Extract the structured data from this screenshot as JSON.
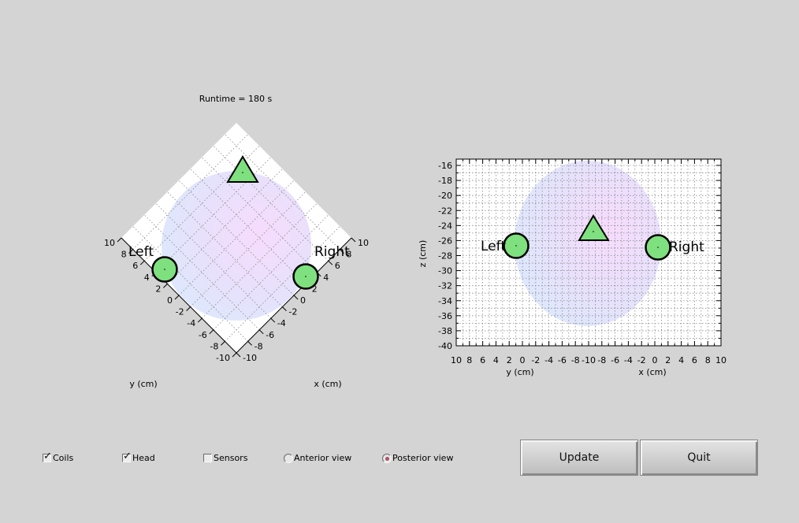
{
  "window": {
    "runtime_label": "Runtime = 180 s"
  },
  "left_plot": {
    "view": "top view, rotated 45 degrees",
    "x_axis_label": "x (cm)",
    "y_axis_label": "y (cm)",
    "x_ticks": [
      "-10",
      "-8",
      "-6",
      "-4",
      "-2",
      "0",
      "2",
      "4",
      "6",
      "8",
      "10"
    ],
    "y_ticks": [
      "10",
      "8",
      "6",
      "4",
      "2",
      "0",
      "-2",
      "-4",
      "-6",
      "-8",
      "-10"
    ],
    "left_label": "Left",
    "right_label": "Right",
    "head": {
      "cx": 0,
      "cy": 0,
      "r": 6.7
    },
    "markers": [
      {
        "shape": "triangle",
        "x": 7.5,
        "y": -4.5
      },
      {
        "shape": "circle",
        "x": -1.5,
        "y": 8
      },
      {
        "shape": "circle",
        "x": 8,
        "y": -2
      }
    ]
  },
  "right_plot": {
    "view": "posterior view",
    "y_axis_label": "z (cm)",
    "bottom_left_label": "y (cm)",
    "bottom_right_label": "x (cm)",
    "z_ticks": [
      "-16",
      "-18",
      "-20",
      "-22",
      "-24",
      "-26",
      "-28",
      "-30",
      "-32",
      "-34",
      "-36",
      "-38",
      "-40"
    ],
    "bottom_ticks": [
      "10",
      "8",
      "6",
      "4",
      "2",
      "0",
      "-2",
      "-4",
      "-6",
      "-8",
      "-10",
      "-8",
      "-6",
      "-4",
      "-2",
      "0",
      "2",
      "4",
      "6",
      "8",
      "10"
    ],
    "left_label": "Left",
    "right_label": "Right",
    "head": {
      "center_tick": -10,
      "center_z": -28.2,
      "radius": 11
    },
    "markers": [
      {
        "shape": "circle",
        "tick_pos": 1,
        "z": -26.8
      },
      {
        "shape": "triangle",
        "tick_pos": -8.8,
        "z": -24.5
      },
      {
        "shape": "circle",
        "tick_pos": 0.5,
        "z": -27
      }
    ]
  },
  "controls": {
    "coils": {
      "label": "Coils",
      "checked": true
    },
    "head": {
      "label": "Head",
      "checked": true
    },
    "sensors": {
      "label": "Sensors",
      "checked": false
    },
    "anterior": {
      "label": "Anterior view",
      "selected": false
    },
    "posterior": {
      "label": "Posterior view",
      "selected": true
    }
  },
  "buttons": {
    "update": "Update",
    "quit": "Quit"
  },
  "colors": {
    "background": "#d4d4d4",
    "plot_face": "#ffffff",
    "marker_fill": "#7ee07e",
    "head_blue": "#d6e8ff",
    "head_pink": "#f5d9ff"
  }
}
